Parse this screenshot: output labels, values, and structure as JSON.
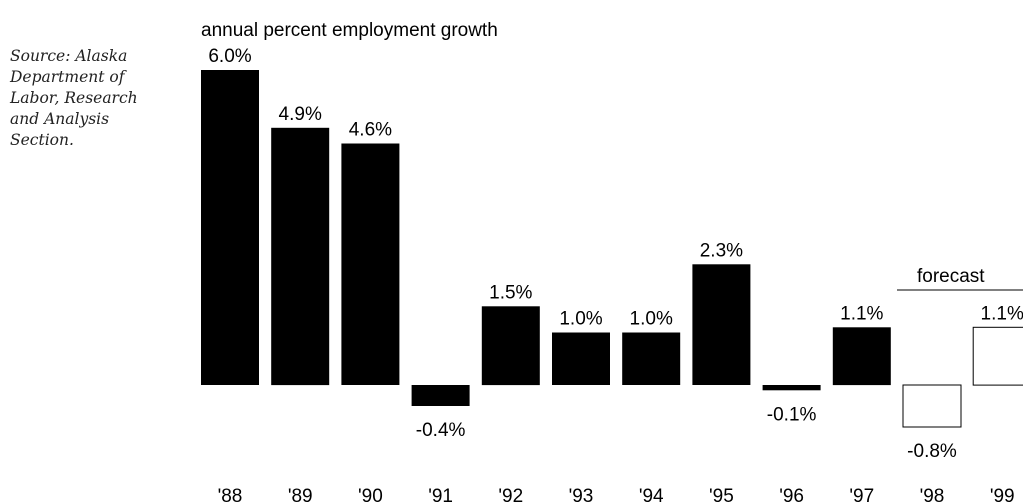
{
  "source_note": "Source: Alaska\nDepartment of\nLabor, Research\nand Analysis\nSection.",
  "chart_data": {
    "type": "bar",
    "title": "annual percent employment growth",
    "forecast_label": "forecast",
    "categories": [
      "'88",
      "'89",
      "'90",
      "'91",
      "'92",
      "'93",
      "'94",
      "'95",
      "'96",
      "'97",
      "'98",
      "'99"
    ],
    "values": [
      6.0,
      4.9,
      4.6,
      -0.4,
      1.5,
      1.0,
      1.0,
      2.3,
      -0.1,
      1.1,
      -0.8,
      1.1
    ],
    "value_labels": [
      "6.0%",
      "4.9%",
      "4.6%",
      "-0.4%",
      "1.5%",
      "1.0%",
      "1.0%",
      "2.3%",
      "-0.1%",
      "1.1%",
      "-0.8%",
      "1.1%"
    ],
    "forecast_start_index": 10,
    "bar_color": "#000000",
    "forecast_bar_fill": "#ffffff",
    "ylim": [
      -0.8,
      6.0
    ],
    "grid": false,
    "legend": false
  }
}
